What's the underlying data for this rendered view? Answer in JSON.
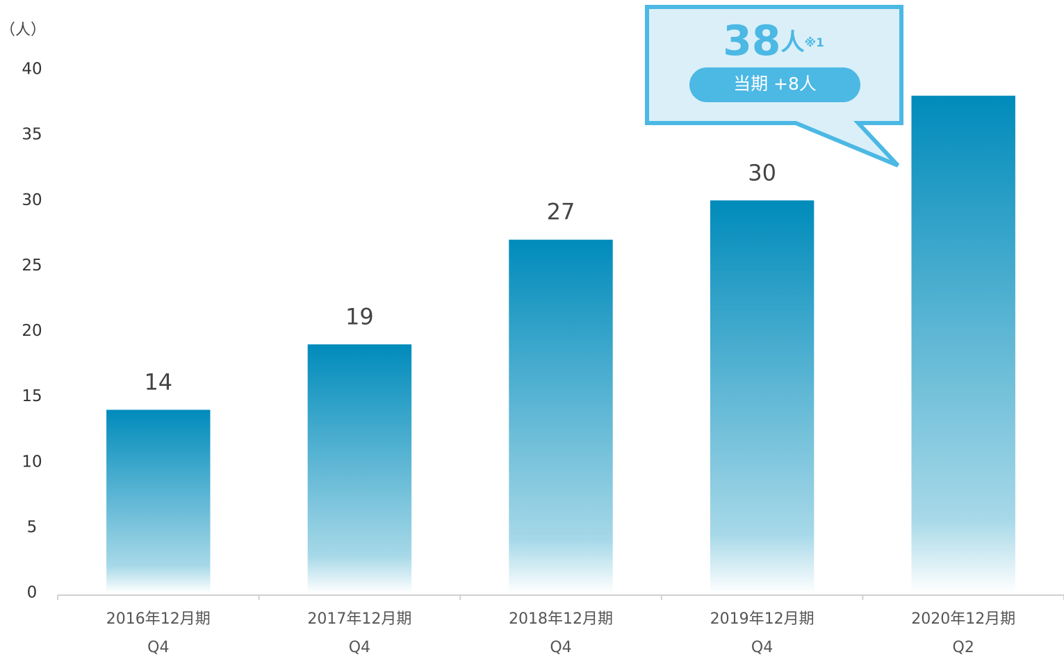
{
  "chart_data": {
    "type": "bar",
    "y_unit_label": "（人）",
    "categories": [
      [
        "2016年12月期",
        "Q4"
      ],
      [
        "2017年12月期",
        "Q4"
      ],
      [
        "2018年12月期",
        "Q4"
      ],
      [
        "2019年12月期",
        "Q4"
      ],
      [
        "2020年12月期",
        "Q2"
      ]
    ],
    "values": [
      14,
      19,
      27,
      30,
      38
    ],
    "color": "#008bbb",
    "ylim": [
      0,
      40
    ],
    "yticks": [
      0,
      5,
      10,
      15,
      20,
      25,
      30,
      35,
      40
    ],
    "grid": false,
    "callout": {
      "unit": "人",
      "note": "※1",
      "change": "当期 +8人",
      "color": "#4cb8e4"
    }
  }
}
